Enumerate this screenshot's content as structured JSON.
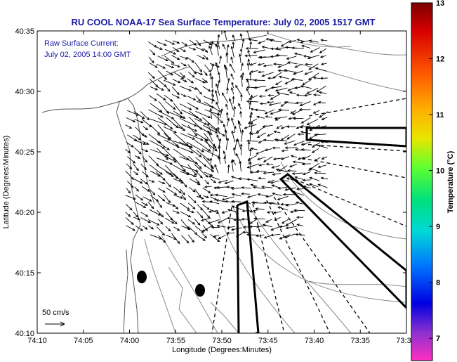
{
  "chart_data": {
    "type": "vector-field",
    "title": "RU COOL  NOAA-17  Sea Surface Temperature:  July 02, 2005 1517 GMT",
    "annotation_line1": "Raw Surface Current:",
    "annotation_line2": "July 02, 2005 14:00 GMT",
    "xlabel": "Longitude (Degrees:Minutes)",
    "ylabel": "Latitude (Degrees:Minutes)",
    "x_ticks": [
      "74:10",
      "74:05",
      "74:00",
      "73:55",
      "73:50",
      "73:45",
      "73:40",
      "73:35",
      "73:3"
    ],
    "y_ticks": [
      "40:35",
      "40:30",
      "40:25",
      "40:20",
      "40:15",
      "40:10"
    ],
    "xlim_minutes_west": [
      70,
      30
    ],
    "ylim_minutes_north": [
      10,
      35
    ],
    "scale_label": "50 cm/s",
    "colorbar": {
      "label": "Temperature (°C)",
      "ticks": [
        "13",
        "12",
        "11",
        "10",
        "9",
        "8",
        "7"
      ],
      "range": [
        6.6,
        13
      ]
    },
    "grid": false,
    "legend": "none"
  }
}
